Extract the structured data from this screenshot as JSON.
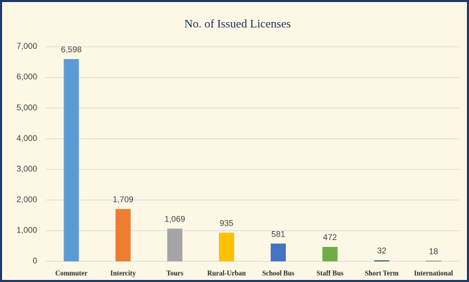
{
  "chart_data": {
    "type": "bar",
    "title": "No. of Issued Licenses",
    "categories": [
      "Commuter",
      "Intercity",
      "Tours",
      "Rural-Urban",
      "School Bus",
      "Staff Bus",
      "Short Term",
      "International"
    ],
    "values": [
      6598,
      1709,
      1069,
      935,
      581,
      472,
      32,
      18
    ],
    "value_labels": [
      "6,598",
      "1,709",
      "1,069",
      "935",
      "581",
      "472",
      "32",
      "18"
    ],
    "colors": [
      "#5b9bd5",
      "#ed7d31",
      "#a5a5a5",
      "#ffc000",
      "#4472c4",
      "#70ad47",
      "#264478",
      "#636363"
    ],
    "ylim": [
      0,
      7000
    ],
    "yticks": [
      0,
      {
        "value": 1000,
        "label": "1,000"
      },
      {
        "value": 2000,
        "label": "2,000"
      },
      {
        "value": 3000,
        "label": "3,000"
      },
      {
        "value": 4000,
        "label": "4,000"
      },
      {
        "value": 5000,
        "label": "5,000"
      },
      {
        "value": 6000,
        "label": "6,000"
      },
      {
        "value": 7000,
        "label": "7,000"
      }
    ],
    "grid": true
  }
}
